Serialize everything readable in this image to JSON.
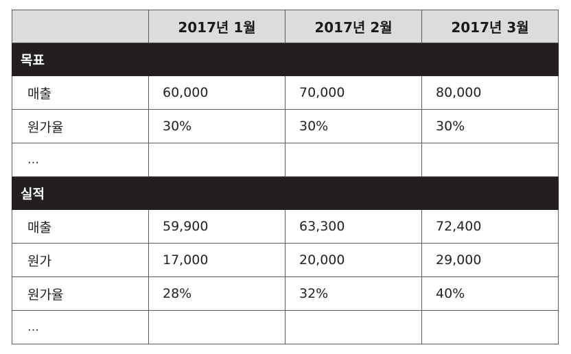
{
  "header": {
    "corner": "",
    "months": [
      "2017년 1월",
      "2017년 2월",
      "2017년 3월"
    ]
  },
  "sections": [
    {
      "title": "목표",
      "rows": [
        {
          "label": "매출",
          "values": [
            "60,000",
            "70,000",
            "80,000"
          ]
        },
        {
          "label": "원가율",
          "values": [
            "30%",
            "30%",
            "30%"
          ]
        },
        {
          "label": "…",
          "values": [
            "",
            "",
            ""
          ]
        }
      ]
    },
    {
      "title": "실적",
      "rows": [
        {
          "label": "매출",
          "values": [
            "59,900",
            "63,300",
            "72,400"
          ]
        },
        {
          "label": "원가",
          "values": [
            "17,000",
            "20,000",
            "29,000"
          ]
        },
        {
          "label": "원가율",
          "values": [
            "28%",
            "32%",
            "40%"
          ]
        },
        {
          "label": "…",
          "values": [
            "",
            "",
            ""
          ]
        }
      ]
    }
  ]
}
